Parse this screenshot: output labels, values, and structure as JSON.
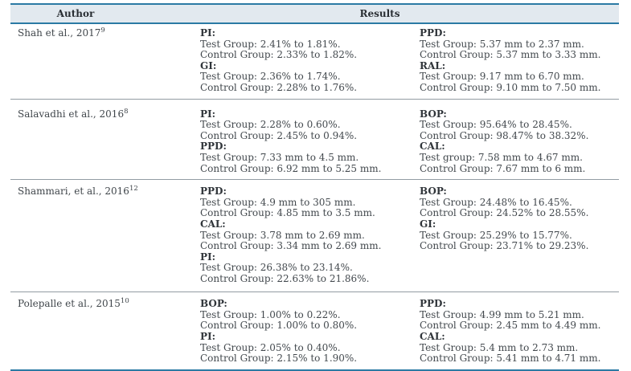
{
  "table": {
    "headers": {
      "author": "Author",
      "results": "Results"
    },
    "rows": [
      {
        "author": "Shah et al., 2017",
        "ref": "9",
        "left": [
          {
            "label": "PI:",
            "lines": [
              "Test Group: 2.41% to 1.81%.",
              "Control Group: 2.33% to 1.82%."
            ]
          },
          {
            "label": "GI:",
            "lines": [
              "Test Group: 2.36% to 1.74%.",
              "Control Group: 2.28% to 1.76%."
            ]
          }
        ],
        "right": [
          {
            "label": "PPD:",
            "lines": [
              "Test Group: 5.37 mm to 2.37 mm.",
              "Control Group: 5.37 mm to 3.33 mm."
            ]
          },
          {
            "label": "RAL:",
            "lines": [
              "Test Group: 9.17 mm to 6.70 mm.",
              "Control Group: 9.10 mm to 7.50 mm."
            ]
          }
        ]
      },
      {
        "author": "Salavadhi et al., 2016",
        "ref": "8",
        "left": [
          {
            "label": "PI:",
            "lines": [
              "Test Group: 2.28% to 0.60%.",
              "Control Group: 2.45% to 0.94%."
            ]
          },
          {
            "label": "PPD:",
            "lines": [
              "Test Group: 7.33 mm to 4.5 mm.",
              "Control Group: 6.92 mm to 5.25 mm."
            ]
          }
        ],
        "right": [
          {
            "label": "BOP:",
            "lines": [
              "Test Group: 95.64% to 28.45%.",
              "Control Group: 98.47% to 38.32%."
            ]
          },
          {
            "label": "CAL:",
            "lines": [
              "Test group: 7.58 mm to 4.67 mm.",
              "Control Group: 7.67 mm to 6 mm."
            ]
          }
        ]
      },
      {
        "author": "Shammari, et al., 2016",
        "ref": "12",
        "left": [
          {
            "label": "PPD:",
            "lines": [
              "Test Group: 4.9 mm to 305 mm.",
              "Control Group: 4.85 mm to 3.5 mm."
            ]
          },
          {
            "label": "CAL:",
            "lines": [
              "Test Group: 3.78 mm to 2.69 mm.",
              "Control Group: 3.34 mm to 2.69 mm."
            ]
          },
          {
            "label": "PI:",
            "lines": [
              "Test Group: 26.38% to 23.14%.",
              "Control Group: 22.63% to 21.86%."
            ]
          }
        ],
        "right": [
          {
            "label": "BOP:",
            "lines": [
              "Test Group: 24.48% to 16.45%.",
              "Control Group: 24.52% to 28.55%."
            ]
          },
          {
            "label": "GI:",
            "lines": [
              "Test Group: 25.29% to 15.77%.",
              "Control Group: 23.71% to 29.23%."
            ]
          }
        ]
      },
      {
        "author": "Polepalle et al., 2015",
        "ref": "10",
        "left": [
          {
            "label": "BOP:",
            "lines": [
              "Test Group: 1.00% to 0.22%.",
              "Control Group: 1.00% to 0.80%."
            ]
          },
          {
            "label": "PI:",
            "lines": [
              "Test Group: 2.05% to 0.40%.",
              "Control Group: 2.15% to 1.90%."
            ]
          }
        ],
        "right": [
          {
            "label": "PPD:",
            "lines": [
              "Test Group: 4.99 mm to 5.21 mm.",
              "Control Group: 2.45 mm to 4.49 mm."
            ]
          },
          {
            "label": "CAL:",
            "lines": [
              "Test Group: 5.4 mm to 2.73 mm.",
              "Control Group: 5.41 mm to 4.71 mm."
            ]
          }
        ]
      }
    ]
  },
  "colors": {
    "border_accent": "#2b7aa4",
    "header_background": "#e2e9ef",
    "row_separator": "#929ca3",
    "text": "#40464b"
  }
}
